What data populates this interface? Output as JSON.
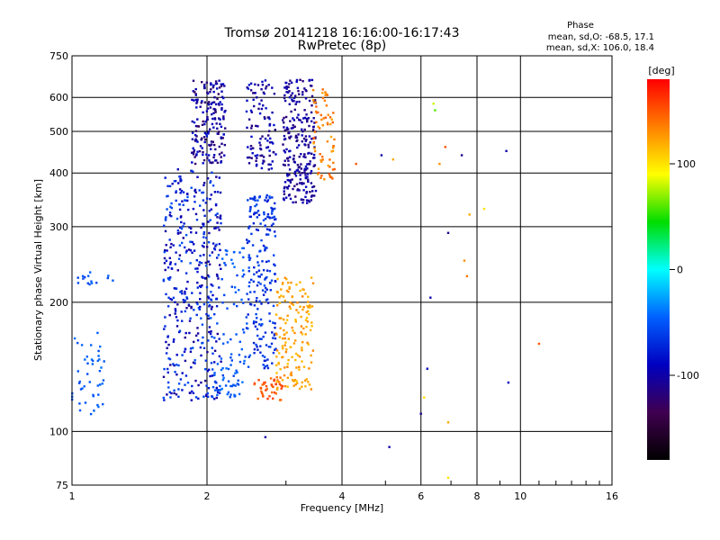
{
  "chart_data": {
    "type": "scatter",
    "title": "Tromsø 20141218 16:16:00-16:17:43",
    "subtitle": "RwPretec (8p)",
    "xlabel": "Frequency [MHz]",
    "ylabel": "Stationary phase Virtual Height [km]",
    "x_scale": "log",
    "y_scale": "log",
    "xlim": [
      1,
      16
    ],
    "ylim": [
      75,
      750
    ],
    "x_ticks": [
      1,
      2,
      4,
      6,
      8,
      10,
      16
    ],
    "y_ticks": [
      75,
      100,
      200,
      300,
      400,
      500,
      600,
      750
    ],
    "grid": true,
    "annotation": {
      "heading": "Phase",
      "line1": "mean, sd,O: -68.5, 17.1",
      "line2": "mean, sd,X: 106.0, 18.4"
    },
    "colorbar": {
      "label": "[deg]",
      "range": [
        -180,
        180
      ],
      "ticks": [
        100,
        0,
        -100
      ],
      "colors": [
        "#ff0000",
        "#ff8000",
        "#ffff00",
        "#00dd00",
        "#00ffff",
        "#0060ff",
        "#0000c0",
        "#400050",
        "#000000"
      ]
    },
    "clusters": [
      {
        "f": [
          1.0,
          1.18
        ],
        "h": [
          105,
          170
        ],
        "phase": [
          -40,
          -55
        ],
        "count": 45
      },
      {
        "f": [
          1.0,
          1.3
        ],
        "h": [
          220,
          235
        ],
        "phase": [
          -40,
          -60
        ],
        "count": 15
      },
      {
        "f": [
          1.6,
          2.15
        ],
        "h": [
          118,
          410
        ],
        "phase": [
          -50,
          -110
        ],
        "count": 420
      },
      {
        "f": [
          1.85,
          2.2
        ],
        "h": [
          420,
          660
        ],
        "phase": [
          -80,
          -130
        ],
        "count": 180
      },
      {
        "f": [
          2.05,
          2.4
        ],
        "h": [
          120,
          140
        ],
        "phase": [
          -40,
          -60
        ],
        "count": 40
      },
      {
        "f": [
          2.15,
          2.5
        ],
        "h": [
          140,
          270
        ],
        "phase": [
          -40,
          -60
        ],
        "count": 60
      },
      {
        "f": [
          2.45,
          2.85
        ],
        "h": [
          140,
          360
        ],
        "phase": [
          -55,
          -80
        ],
        "count": 200
      },
      {
        "f": [
          2.45,
          2.85
        ],
        "h": [
          400,
          660
        ],
        "phase": [
          -80,
          -120
        ],
        "count": 100
      },
      {
        "f": [
          2.95,
          3.5
        ],
        "h": [
          340,
          660
        ],
        "phase": [
          -90,
          -120
        ],
        "count": 260
      },
      {
        "f": [
          2.55,
          2.95
        ],
        "h": [
          118,
          135
        ],
        "phase": [
          140,
          160
        ],
        "count": 40
      },
      {
        "f": [
          2.85,
          3.45
        ],
        "h": [
          125,
          230
        ],
        "phase": [
          110,
          135
        ],
        "count": 160
      },
      {
        "f": [
          3.45,
          3.85
        ],
        "h": [
          380,
          640
        ],
        "phase": [
          120,
          150
        ],
        "count": 70
      }
    ],
    "sparse_points": [
      {
        "f": 4.3,
        "h": 420,
        "phase": 150
      },
      {
        "f": 4.9,
        "h": 440,
        "phase": -100
      },
      {
        "f": 5.2,
        "h": 430,
        "phase": 120
      },
      {
        "f": 6.1,
        "h": 120,
        "phase": 100
      },
      {
        "f": 6.2,
        "h": 140,
        "phase": -90
      },
      {
        "f": 6.3,
        "h": 205,
        "phase": -100
      },
      {
        "f": 6.4,
        "h": 580,
        "phase": 80
      },
      {
        "f": 6.45,
        "h": 560,
        "phase": 60
      },
      {
        "f": 6.6,
        "h": 420,
        "phase": 130
      },
      {
        "f": 6.8,
        "h": 460,
        "phase": 150
      },
      {
        "f": 6.9,
        "h": 290,
        "phase": -110
      },
      {
        "f": 6.9,
        "h": 105,
        "phase": 120
      },
      {
        "f": 6.9,
        "h": 78,
        "phase": 100
      },
      {
        "f": 7.4,
        "h": 440,
        "phase": -110
      },
      {
        "f": 7.5,
        "h": 250,
        "phase": 130
      },
      {
        "f": 7.6,
        "h": 230,
        "phase": 140
      },
      {
        "f": 7.7,
        "h": 320,
        "phase": 120
      },
      {
        "f": 8.3,
        "h": 330,
        "phase": 100
      },
      {
        "f": 9.3,
        "h": 450,
        "phase": -100
      },
      {
        "f": 9.4,
        "h": 130,
        "phase": -90
      },
      {
        "f": 11.0,
        "h": 160,
        "phase": 150
      },
      {
        "f": 5.1,
        "h": 92,
        "phase": -100
      },
      {
        "f": 2.7,
        "h": 97,
        "phase": -100
      },
      {
        "f": 6.0,
        "h": 110,
        "phase": -110
      }
    ]
  }
}
